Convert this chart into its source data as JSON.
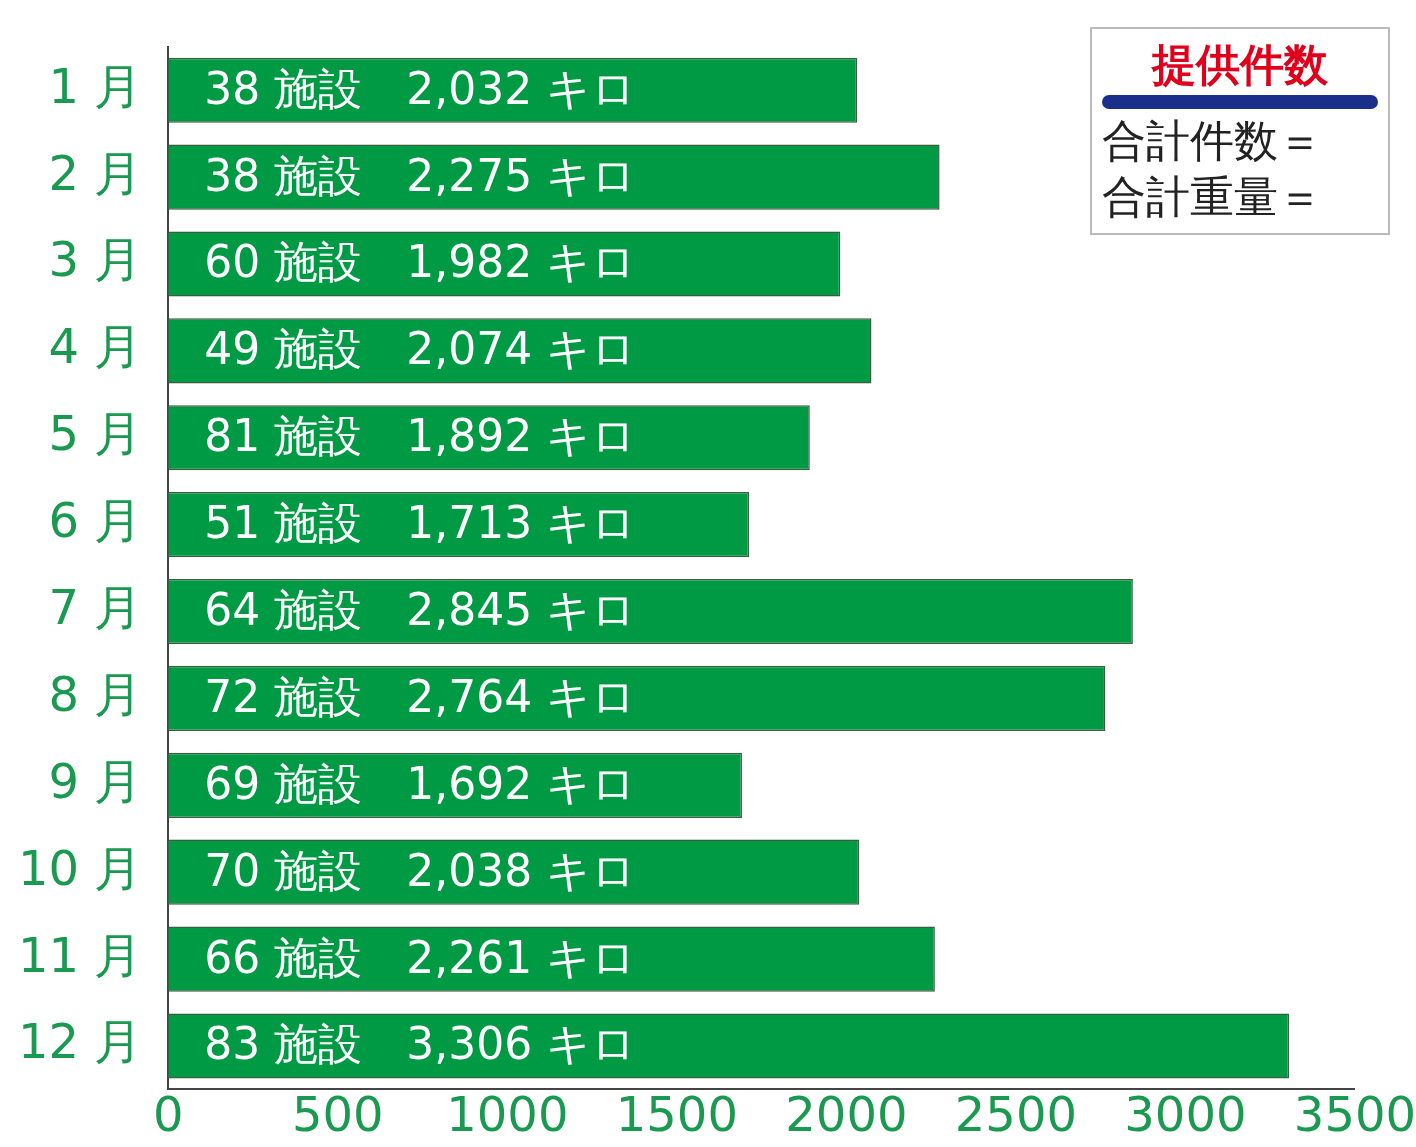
{
  "chart_data": {
    "type": "bar",
    "orientation": "horizontal",
    "categories": [
      "1 月",
      "2 月",
      "3 月",
      "4 月",
      "5 月",
      "6 月",
      "7 月",
      "8 月",
      "9 月",
      "10 月",
      "11 月",
      "12 月"
    ],
    "values": [
      2032,
      2275,
      1982,
      2074,
      1892,
      1713,
      2845,
      2764,
      1692,
      2038,
      2261,
      3306
    ],
    "value_labels": [
      "38 施設　2,032 キロ",
      "38 施設　2,275 キロ",
      "60 施設　1,982 キロ",
      "49 施設　2,074 キロ",
      "81 施設　1,892 キロ",
      "51 施設　1,713 キロ",
      "64 施設　2,845 キロ",
      "72 施設　2,764 キロ",
      "69 施設　1,692 キロ",
      "70 施設　2,038 キロ",
      "66 施設　2,261 キロ",
      "83 施設　3,306 キロ"
    ],
    "color": "#009a44",
    "xlim": [
      0,
      3500
    ],
    "xticks": [
      0,
      500,
      1000,
      1500,
      2000,
      2500,
      3000,
      3500
    ],
    "grid": false,
    "legend": false,
    "annotations": [
      "提供件数",
      "合計件数＝",
      "合計重量＝"
    ]
  }
}
